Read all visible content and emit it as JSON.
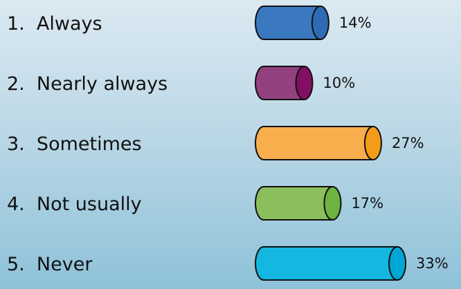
{
  "chart_data": {
    "type": "bar",
    "orientation": "horizontal",
    "style": "3d-cylinder",
    "categories": [
      "1.  Always",
      "2.  Nearly always",
      "3.  Sometimes",
      "4.  Not usually",
      "5.  Never"
    ],
    "values": [
      14,
      10,
      27,
      17,
      33
    ],
    "value_labels": [
      "14%",
      "10%",
      "27%",
      "17%",
      "33%"
    ],
    "colors": [
      "#3a78c0",
      "#93407f",
      "#f8ae4c",
      "#8bbe5c",
      "#13b7e0"
    ],
    "end_colors": [
      "#2f6bb4",
      "#820f63",
      "#f39c1a",
      "#6db33f",
      "#00a6d4"
    ],
    "unit": "%",
    "xlim": [
      0,
      33
    ],
    "grid": false,
    "legend": "none"
  }
}
